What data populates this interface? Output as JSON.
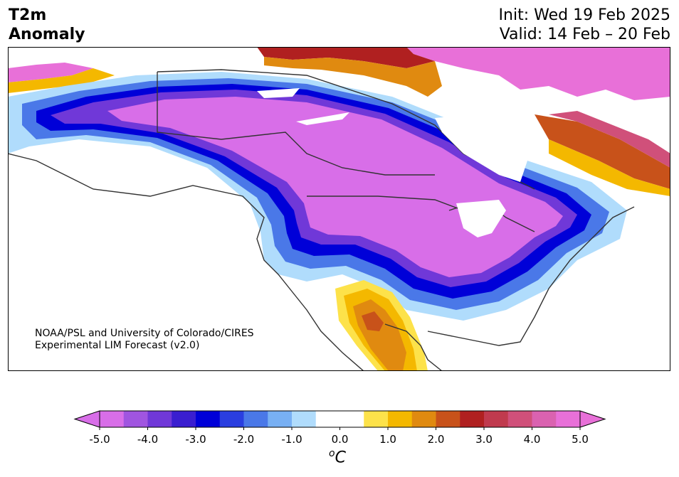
{
  "header": {
    "title_line1": "T2m",
    "title_line2": "Anomaly",
    "init": "Init: Wed 19 Feb 2025",
    "valid": "Valid: 14 Feb – 20 Feb"
  },
  "credit": {
    "line1": "NOAA/PSL and University of Colorado/CIRES",
    "line2": "Experimental LIM Forecast (v2.0)"
  },
  "colorbar": {
    "ticks": [
      "-5.0",
      "-4.0",
      "-3.0",
      "-2.0",
      "-1.0",
      "0.0",
      "1.0",
      "2.0",
      "3.0",
      "4.0",
      "5.0"
    ],
    "unit_main": "C",
    "unit_sup": "o",
    "colors": [
      "#d86ee8",
      "#a055e0",
      "#7038d8",
      "#3a1ed0",
      "#0000d8",
      "#2a3ee0",
      "#4a78e8",
      "#78b0f4",
      "#b0dcfc",
      "#ffffff",
      "#ffffff",
      "#fde24a",
      "#f4b800",
      "#e08a10",
      "#c8521a",
      "#b02020",
      "#c03a4e",
      "#d0507a",
      "#da62b0",
      "#e870d8"
    ],
    "under_color": "#d86ee8",
    "over_color": "#e870d8"
  },
  "map": {
    "region": "North America",
    "field": "2m temperature anomaly",
    "colors": {
      "deep_cold": "#d86ee8",
      "cold_violet": "#a055e0",
      "cold_blue": "#0000d8",
      "cool_blue": "#4a78e8",
      "light_blue": "#b0dcfc",
      "warm_yellow": "#f4b800",
      "warm_orange": "#e08a10",
      "hot_red": "#b02020",
      "hot_magenta": "#e870d8",
      "land_line": "#333333"
    }
  }
}
